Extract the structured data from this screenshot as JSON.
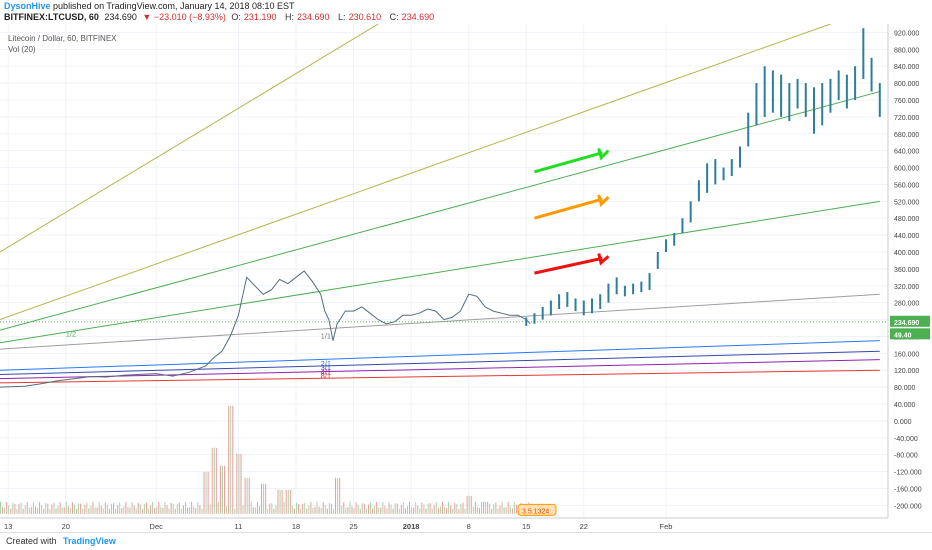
{
  "header": {
    "author": "DysonHive",
    "published": "published on TradingView.com, January 14, 2018 08:10 EST",
    "symbol": "BITFINEX:LTCUSD, 60",
    "last": "234.690",
    "change": "▼ −23.010 (−8.93%)",
    "open_label": "O:",
    "open": "231.190",
    "high_label": "H:",
    "high": "234.690",
    "low_label": "L:",
    "low": "230.610",
    "close_label": "C:",
    "close": "234.690"
  },
  "legend": {
    "title": "Litecoin / Dollar, 60, BITFINEX",
    "indicator": "Vol (20)"
  },
  "footer": {
    "created_with": "Created with",
    "brand": "TradingView"
  },
  "colors": {
    "bull": "#2e7d9a",
    "bear": "#2e7d9a",
    "price_tag": "#4caf50",
    "arrow_green": "#22dd22",
    "arrow_orange": "#ff9900",
    "arrow_red": "#ee1111",
    "fan_olive": "#b5b54a",
    "fan_green": "#4caf50",
    "fan_gray": "#9e9e9e",
    "fan_blue": "#2979ff",
    "fan_navy": "#3949ab",
    "fan_purple": "#8e24aa",
    "fan_red": "#e53935"
  },
  "chart_data": {
    "type": "line",
    "title": "Litecoin / Dollar, 60, BITFINEX",
    "ylim": [
      -230,
      940
    ],
    "y_ticks": [
      "920.000",
      "880.000",
      "840.000",
      "800.000",
      "760.000",
      "720.000",
      "680.000",
      "640.000",
      "600.000",
      "560.000",
      "520.000",
      "480.000",
      "440.000",
      "400.000",
      "360.000",
      "320.000",
      "280.000",
      "240.000",
      "200.000",
      "160.000",
      "120.000",
      "80.000",
      "40.000",
      "0.000",
      "-40.000",
      "-80.000",
      "-120.000",
      "-160.000",
      "-200.000"
    ],
    "x_ticks": [
      "13",
      "20",
      "Dec",
      "11",
      "18",
      "25",
      "2018",
      "8",
      "15",
      "22",
      "Feb"
    ],
    "x_tick_days": [
      0,
      7,
      18,
      28,
      35,
      42,
      49,
      56,
      63,
      70,
      80
    ],
    "xlim": [
      -1,
      107
    ],
    "price_series": {
      "name": "LTCUSD",
      "days": [
        -1,
        2,
        4,
        6,
        8,
        10,
        12,
        14,
        16,
        18,
        20,
        22,
        24,
        25,
        26,
        27,
        27.5,
        28,
        29,
        30,
        31,
        32,
        33,
        34,
        35,
        36,
        37,
        38,
        38.5,
        39,
        39.5,
        40,
        41,
        42,
        43,
        44,
        45,
        46,
        47,
        48,
        49,
        50,
        51,
        52,
        53,
        54,
        55,
        56,
        57,
        58,
        59,
        60,
        61,
        62,
        63,
        63.5
      ],
      "values": [
        80,
        82,
        88,
        95,
        100,
        105,
        104,
        108,
        110,
        112,
        106,
        115,
        130,
        150,
        165,
        200,
        225,
        250,
        340,
        320,
        300,
        310,
        335,
        325,
        340,
        355,
        330,
        300,
        260,
        240,
        190,
        230,
        260,
        260,
        270,
        255,
        240,
        230,
        235,
        250,
        250,
        255,
        265,
        260,
        240,
        245,
        260,
        300,
        295,
        270,
        260,
        255,
        250,
        250,
        240,
        230
      ]
    },
    "projection_bars": {
      "name": "Projection",
      "days": [
        63,
        64,
        65,
        66,
        67,
        68,
        69,
        70,
        71,
        72,
        73,
        74,
        75,
        76,
        77,
        78,
        79,
        80,
        81,
        82,
        83,
        84,
        85,
        86,
        87,
        88,
        89,
        90,
        91,
        92,
        93,
        94,
        95,
        96,
        97,
        98,
        99,
        100,
        101,
        102,
        103,
        104,
        105,
        106
      ],
      "lows": [
        225,
        230,
        240,
        250,
        265,
        270,
        260,
        250,
        255,
        265,
        280,
        300,
        295,
        300,
        305,
        310,
        360,
        400,
        415,
        445,
        470,
        520,
        540,
        560,
        570,
        580,
        600,
        650,
        700,
        720,
        730,
        720,
        710,
        740,
        720,
        680,
        700,
        730,
        760,
        740,
        760,
        810,
        780,
        720
      ],
      "highs": [
        245,
        255,
        270,
        285,
        300,
        305,
        290,
        285,
        290,
        300,
        325,
        340,
        320,
        325,
        330,
        350,
        400,
        430,
        445,
        480,
        520,
        570,
        610,
        620,
        600,
        620,
        650,
        730,
        800,
        840,
        830,
        820,
        800,
        810,
        800,
        790,
        800,
        810,
        830,
        820,
        840,
        930,
        860,
        800
      ]
    },
    "volume": {
      "name": "Vol (20)",
      "note": "volume histogram shown near bottom; peaks around Dec 8-11",
      "spike_days": [
        24,
        25,
        26,
        27,
        28,
        29,
        31,
        33,
        34,
        40,
        56,
        58
      ],
      "spike_heights": [
        0.35,
        0.55,
        0.4,
        0.9,
        0.5,
        0.3,
        0.25,
        0.2,
        0.2,
        0.3,
        0.15,
        0.1
      ]
    },
    "fan_lines": [
      {
        "name": "olive",
        "from": [
          -1,
          400
        ],
        "to": [
          45,
          940
        ]
      },
      {
        "name": "olive",
        "from": [
          -1,
          240
        ],
        "to": [
          100,
          940
        ]
      },
      {
        "name": "green",
        "from": [
          -1,
          215
        ],
        "to": [
          106,
          780
        ]
      },
      {
        "name": "green",
        "from": [
          -1,
          185
        ],
        "to": [
          106,
          520
        ]
      },
      {
        "name": "gray",
        "from": [
          -1,
          170
        ],
        "to": [
          106,
          300
        ]
      },
      {
        "name": "blue",
        "from": [
          -1,
          120
        ],
        "to": [
          106,
          190
        ]
      },
      {
        "name": "navy",
        "from": [
          -1,
          110
        ],
        "to": [
          106,
          165
        ]
      },
      {
        "name": "purple",
        "from": [
          -1,
          100
        ],
        "to": [
          106,
          145
        ]
      },
      {
        "name": "red",
        "from": [
          -1,
          90
        ],
        "to": [
          106,
          120
        ]
      }
    ],
    "fan_labels": [
      {
        "text": "1/2",
        "day": 7,
        "value": 200
      },
      {
        "text": "1/1",
        "day": 38,
        "value": 195
      },
      {
        "text": "2/1",
        "day": 38,
        "value": 130
      },
      {
        "text": "3/1",
        "day": 38,
        "value": 120
      },
      {
        "text": "4/1",
        "day": 38,
        "value": 110
      },
      {
        "text": "8/1",
        "day": 38,
        "value": 100
      }
    ],
    "arrows": [
      {
        "color": "green",
        "from": [
          64,
          590
        ],
        "to": [
          73,
          640
        ]
      },
      {
        "color": "orange",
        "from": [
          64,
          480
        ],
        "to": [
          73,
          530
        ]
      },
      {
        "color": "red",
        "from": [
          64,
          350
        ],
        "to": [
          73,
          390
        ]
      }
    ],
    "price_label": "234.690",
    "volume_label": "49.40",
    "bottom_badge": "3.5.1324"
  }
}
